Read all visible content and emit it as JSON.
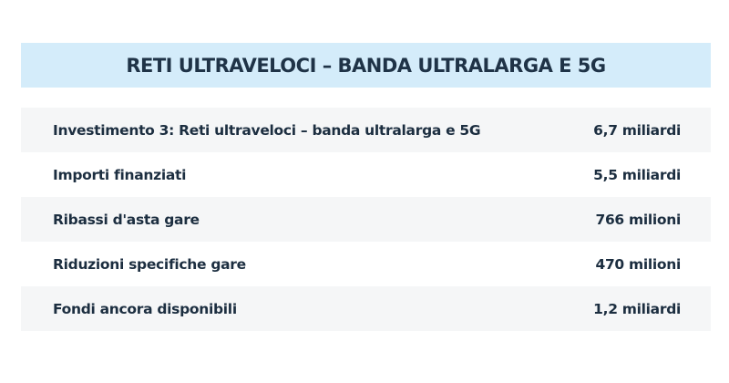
{
  "title": "RETI ULTRAVELOCI – BANDA ULTRALARGA E 5G",
  "rows": [
    {
      "label": "Investimento 3: Reti ultraveloci – banda ultralarga e 5G",
      "value": "6,7 miliardi"
    },
    {
      "label": "Importi finanziati",
      "value": "5,5 miliardi"
    },
    {
      "label": "Ribassi d'asta gare",
      "value": "766 milioni"
    },
    {
      "label": "Riduzioni specifiche gare",
      "value": "470 milioni"
    },
    {
      "label": "Fondi ancora disponibili",
      "value": "1,2 miliardi"
    }
  ],
  "colors": {
    "header_bg": "#d4ecfa",
    "text": "#1c2e40",
    "row_alt": "#f5f6f7"
  }
}
